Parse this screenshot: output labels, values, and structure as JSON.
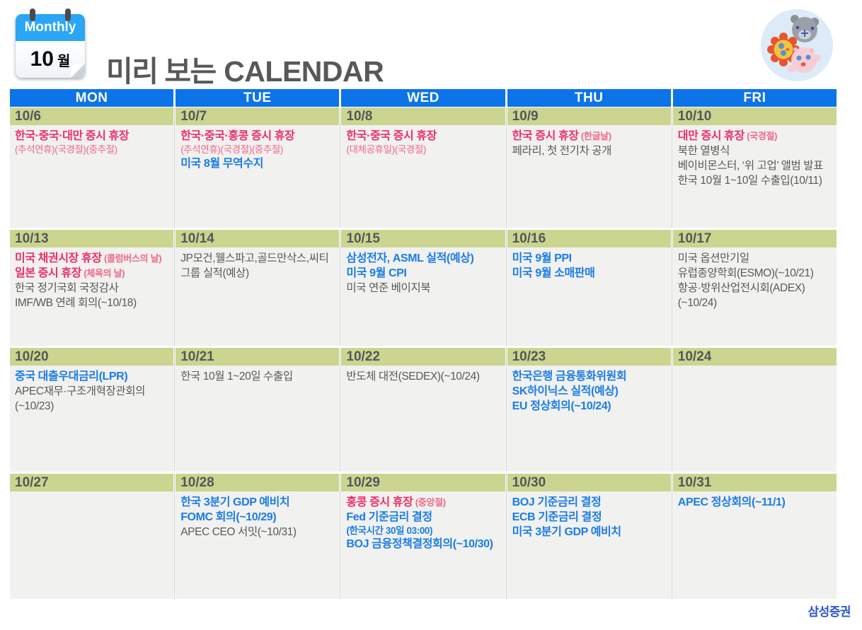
{
  "header": {
    "badge_label": "Monthly",
    "badge_month": "10",
    "badge_month_unit": "월",
    "title_ko": "미리 보는",
    "title_en": "CALENDAR"
  },
  "icons": {
    "badge": "calendar-flip-icon",
    "mascot": "mascot-characters-circle"
  },
  "colors": {
    "header_blue": "#0d73e9",
    "date_green": "#cbd58f",
    "cell_bg": "#f1f1ef",
    "pink": "#ed2e67",
    "pink_light": "#f0688a",
    "blue": "#1a7ce8",
    "text_gray": "#595959",
    "brand_blue": "#2b54cc",
    "badge_blue": "#2ba5f6"
  },
  "calendar": {
    "days": [
      "MON",
      "TUE",
      "WED",
      "THU",
      "FRI"
    ],
    "weeks": [
      [
        {
          "date": "10/6",
          "events": [
            {
              "t": "한국·중국·대만 증시 휴장",
              "s": "pink-bold"
            },
            {
              "t": "(추석연휴)(국경절)(중추절)",
              "s": "pink-small"
            }
          ]
        },
        {
          "date": "10/7",
          "events": [
            {
              "t": "한국·중국·홍콩 증시 휴장",
              "s": "pink-bold"
            },
            {
              "t": "(추석연휴)(국경절)(중추절)",
              "s": "pink-small"
            },
            {
              "t": "미국 8월 무역수지",
              "s": "blue-bold"
            }
          ]
        },
        {
          "date": "10/8",
          "events": [
            {
              "t": "한국·중국 증시 휴장",
              "s": "pink-bold"
            },
            {
              "t": "(대체공휴일)(국경절)",
              "s": "pink-small"
            }
          ]
        },
        {
          "date": "10/9",
          "events": [
            {
              "t": "한국 증시 휴장",
              "s": "pink-bold",
              "n": "(한글날)"
            },
            {
              "t": "페라리, 첫 전기차 공개",
              "s": "gray"
            }
          ]
        },
        {
          "date": "10/10",
          "events": [
            {
              "t": "대만 증시 휴장",
              "s": "pink-bold",
              "n": "(국경절)"
            },
            {
              "t": "북한 열병식",
              "s": "gray"
            },
            {
              "t": "베이비몬스터, ‘위 고업’ 앨범 발표",
              "s": "gray"
            },
            {
              "t": "한국 10월 1~10일 수출입(10/11)",
              "s": "gray"
            }
          ]
        }
      ],
      [
        {
          "date": "10/13",
          "events": [
            {
              "t": "미국 채권시장 휴장",
              "s": "pink-bold",
              "n": "(콜럼버스의 날)"
            },
            {
              "t": "일본 증시 휴장",
              "s": "pink-bold",
              "n": "(체육의 날)"
            },
            {
              "t": "한국 정기국회 국정감사",
              "s": "gray"
            },
            {
              "t": "IMF/WB 연례 회의(~10/18)",
              "s": "gray"
            }
          ]
        },
        {
          "date": "10/14",
          "events": [
            {
              "t": "JP모건,웰스파고,골드만삭스,씨티그룹 실적(예상)",
              "s": "gray"
            }
          ]
        },
        {
          "date": "10/15",
          "events": [
            {
              "t": "삼성전자, ASML 실적(예상)",
              "s": "blue-bold"
            },
            {
              "t": "미국 9월 CPI",
              "s": "blue-bold"
            },
            {
              "t": "미국 연준 베이지북",
              "s": "gray"
            }
          ]
        },
        {
          "date": "10/16",
          "events": [
            {
              "t": "미국 9월 PPI",
              "s": "blue-bold"
            },
            {
              "t": "미국 9월 소매판매",
              "s": "blue-bold"
            }
          ]
        },
        {
          "date": "10/17",
          "events": [
            {
              "t": "미국 옵션만기일",
              "s": "gray"
            },
            {
              "t": "유럽종양학회(ESMO)(~10/21)",
              "s": "gray"
            },
            {
              "t": "항공·방위산업전시회(ADEX)(~10/24)",
              "s": "gray"
            }
          ]
        }
      ],
      [
        {
          "date": "10/20",
          "events": [
            {
              "t": "중국 대출우대금리(LPR)",
              "s": "blue-bold"
            },
            {
              "t": "APEC재무·구조개혁장관회의(~10/23)",
              "s": "gray"
            }
          ]
        },
        {
          "date": "10/21",
          "events": [
            {
              "t": "한국 10월 1~20일 수출입",
              "s": "gray"
            }
          ]
        },
        {
          "date": "10/22",
          "events": [
            {
              "t": "반도체 대전(SEDEX)(~10/24)",
              "s": "gray"
            }
          ]
        },
        {
          "date": "10/23",
          "events": [
            {
              "t": "한국은행 금융통화위원회",
              "s": "blue-bold"
            },
            {
              "t": "SK하이닉스 실적(예상)",
              "s": "blue-bold"
            },
            {
              "t": "EU 정상회의(~10/24)",
              "s": "blue-bold"
            }
          ]
        },
        {
          "date": "10/24",
          "events": []
        }
      ],
      [
        {
          "date": "10/27",
          "events": []
        },
        {
          "date": "10/28",
          "events": [
            {
              "t": "한국 3분기 GDP 예비치",
              "s": "blue-bold"
            },
            {
              "t": "FOMC 회의(~10/29)",
              "s": "blue-bold"
            },
            {
              "t": "APEC CEO 서밋(~10/31)",
              "s": "gray"
            }
          ]
        },
        {
          "date": "10/29",
          "events": [
            {
              "t": "홍콩 증시 휴장",
              "s": "pink-bold",
              "n": "(중앙절)"
            },
            {
              "t": "Fed 기준금리 결정",
              "s": "blue-bold"
            },
            {
              "t": "(한국시간 30일 03:00)",
              "s": "blue-small"
            },
            {
              "t": "BOJ 금융정책결정회의(~10/30)",
              "s": "blue-bold"
            }
          ]
        },
        {
          "date": "10/30",
          "events": [
            {
              "t": "BOJ 기준금리 결정",
              "s": "blue-bold"
            },
            {
              "t": "ECB 기준금리 결정",
              "s": "blue-bold"
            },
            {
              "t": "미국 3분기 GDP 예비치",
              "s": "blue-bold"
            }
          ]
        },
        {
          "date": "10/31",
          "events": [
            {
              "t": "APEC 정상회의(~11/1)",
              "s": "blue-bold"
            }
          ]
        }
      ]
    ]
  },
  "footer": {
    "brand": "삼성증권"
  }
}
